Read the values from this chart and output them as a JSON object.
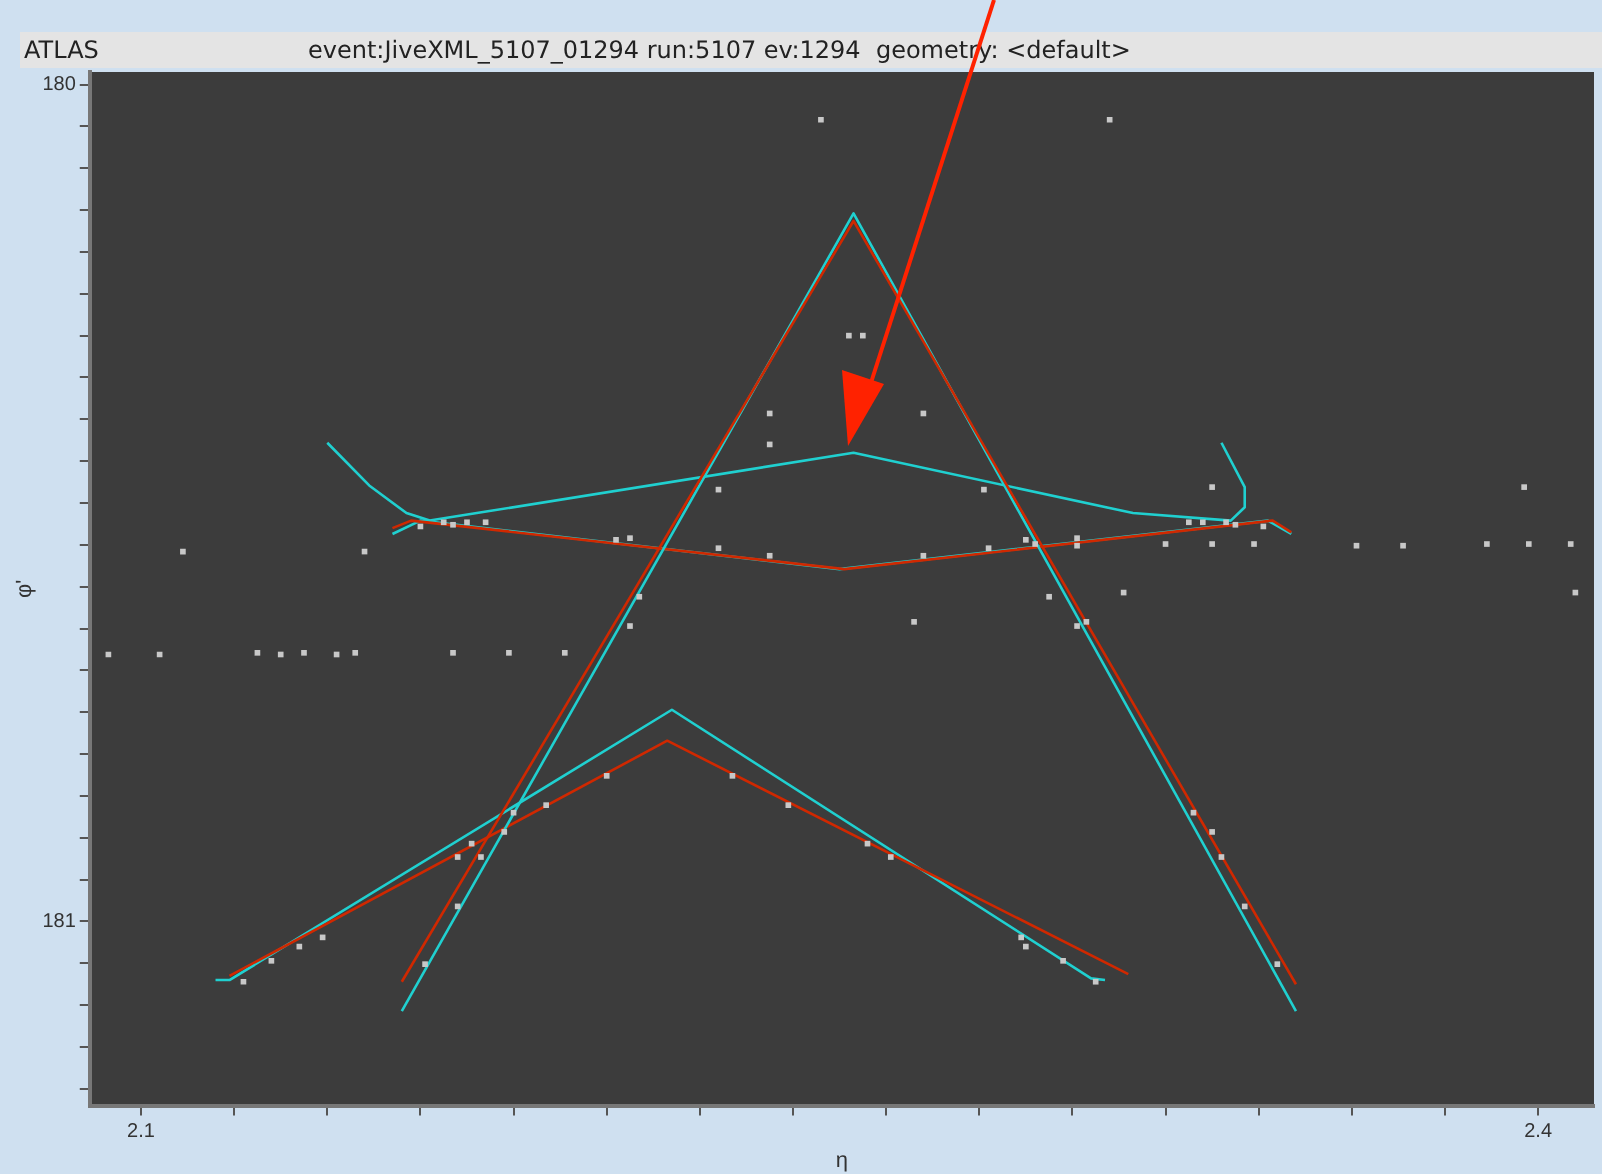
{
  "chart_data": {
    "type": "scatter",
    "title": "ATLAS",
    "subtitle": "event:JiveXML_5107_01294 run:5107 ev:1294  geometry: <default>",
    "xlabel": "η",
    "ylabel": "φ'",
    "xlim": [
      2.089,
      2.412
    ],
    "ylim": [
      181.22,
      179.985
    ],
    "xticks": [
      2.1,
      {
        "value": 2.12,
        "label": null
      },
      {
        "value": 2.14,
        "label": null
      },
      {
        "value": 2.16,
        "label": null
      },
      {
        "value": 2.18,
        "label": null
      },
      {
        "value": 2.2,
        "label": null
      },
      {
        "value": 2.22,
        "label": null
      },
      {
        "value": 2.24,
        "label": null
      },
      {
        "value": 2.26,
        "label": null
      },
      {
        "value": 2.28,
        "label": null
      },
      {
        "value": 2.3,
        "label": null
      },
      {
        "value": 2.32,
        "label": null
      },
      {
        "value": 2.34,
        "label": null
      },
      {
        "value": 2.36,
        "label": null
      },
      {
        "value": 2.38,
        "label": null
      },
      2.4
    ],
    "yticks": [
      180,
      {
        "value": 180.05,
        "label": null
      },
      {
        "value": 180.1,
        "label": null
      },
      {
        "value": 180.15,
        "label": null
      },
      {
        "value": 180.2,
        "label": null
      },
      {
        "value": 180.25,
        "label": null
      },
      {
        "value": 180.3,
        "label": null
      },
      {
        "value": 180.35,
        "label": null
      },
      {
        "value": 180.4,
        "label": null
      },
      {
        "value": 180.45,
        "label": null
      },
      {
        "value": 180.5,
        "label": null
      },
      {
        "value": 180.55,
        "label": null
      },
      {
        "value": 180.6,
        "label": null
      },
      {
        "value": 180.65,
        "label": null
      },
      {
        "value": 180.7,
        "label": null
      },
      {
        "value": 180.75,
        "label": null
      },
      {
        "value": 180.8,
        "label": null
      },
      {
        "value": 180.85,
        "label": null
      },
      {
        "value": 180.9,
        "label": null
      },
      {
        "value": 180.95,
        "label": null
      },
      181,
      {
        "value": 181.05,
        "label": null
      },
      {
        "value": 181.1,
        "label": null
      },
      {
        "value": 181.15,
        "label": null
      },
      {
        "value": 181.2,
        "label": null
      }
    ],
    "grid": false,
    "legend": false,
    "marker": "square",
    "series": [
      {
        "type": "scatter",
        "color": "#c8c8c8",
        "x": [
          2.093,
          2.104,
          2.109,
          2.125,
          2.13,
          2.135,
          2.142,
          2.146,
          2.148,
          2.16,
          2.165,
          2.167,
          2.17,
          2.174,
          2.167,
          2.179,
          2.191,
          2.202,
          2.205,
          2.207,
          2.205,
          2.224,
          2.224,
          2.235,
          2.235,
          2.235,
          2.252,
          2.255,
          2.268,
          2.281,
          2.268,
          2.266,
          2.282,
          2.29,
          2.292,
          2.301,
          2.301,
          2.295,
          2.311,
          2.301,
          2.303,
          2.32,
          2.33,
          2.33,
          2.325,
          2.328,
          2.333,
          2.335,
          2.341,
          2.339,
          2.361,
          2.371,
          2.389,
          2.398,
          2.407,
          2.397,
          2.408,
          2.246,
          2.308,
          2.122,
          2.128,
          2.134,
          2.139,
          2.161,
          2.168,
          2.168,
          2.171,
          2.173,
          2.178,
          2.18,
          2.187,
          2.2,
          2.227,
          2.239,
          2.256,
          2.261,
          2.289,
          2.29,
          2.298,
          2.305,
          2.326,
          2.33,
          2.332,
          2.337,
          2.344
        ],
        "values": [
          180.681,
          180.681,
          180.558,
          180.679,
          180.681,
          180.679,
          180.681,
          180.679,
          180.558,
          180.528,
          180.523,
          180.526,
          180.523,
          180.523,
          180.679,
          180.679,
          180.679,
          180.544,
          180.542,
          180.612,
          180.647,
          180.484,
          180.554,
          180.393,
          180.43,
          180.563,
          180.3,
          180.3,
          180.393,
          180.484,
          180.563,
          180.642,
          180.554,
          180.544,
          180.549,
          180.542,
          180.551,
          180.612,
          180.607,
          180.647,
          180.642,
          180.549,
          180.481,
          180.549,
          180.523,
          180.523,
          180.523,
          180.526,
          180.528,
          180.549,
          180.551,
          180.551,
          180.549,
          180.549,
          180.549,
          180.481,
          180.607,
          180.042,
          180.042,
          181.072,
          181.047,
          181.03,
          181.019,
          181.051,
          180.982,
          180.923,
          180.907,
          180.923,
          180.893,
          180.87,
          180.861,
          180.826,
          180.826,
          180.861,
          180.907,
          180.923,
          181.019,
          181.03,
          181.047,
          181.072,
          180.87,
          180.893,
          180.923,
          180.982,
          181.051
        ]
      },
      {
        "type": "line",
        "marker": "none",
        "color": "#d02800",
        "x": [
          2.156,
          2.253,
          2.348
        ],
        "values": [
          181.072,
          180.163,
          181.075
        ]
      },
      {
        "type": "line",
        "marker": "none",
        "color": "#20d0d0",
        "x": [
          2.156,
          2.253,
          2.348
        ],
        "values": [
          181.107,
          180.154,
          181.107
        ]
      },
      {
        "type": "line",
        "marker": "none",
        "color": "#d02800",
        "x": [
          2.119,
          2.213,
          2.312
        ],
        "values": [
          181.065,
          180.784,
          181.063
        ]
      },
      {
        "type": "line",
        "marker": "none",
        "color": "#20d0d0",
        "x": [
          2.116,
          2.119,
          2.214,
          2.304,
          2.307
        ],
        "values": [
          181.07,
          181.07,
          180.747,
          181.068,
          181.07
        ]
      },
      {
        "type": "line",
        "marker": "none",
        "color": "#d02800",
        "x": [
          2.154,
          2.158,
          2.251,
          2.343,
          2.347
        ],
        "values": [
          180.53,
          180.521,
          180.579,
          180.521,
          180.535
        ]
      },
      {
        "type": "line",
        "marker": "none",
        "color": "#20d0d0",
        "x": [
          2.154,
          2.16,
          2.25,
          2.342,
          2.347
        ],
        "values": [
          180.537,
          180.521,
          180.579,
          180.521,
          180.537
        ]
      },
      {
        "type": "line",
        "marker": "none",
        "color": "#20d0d0",
        "x": [
          2.14,
          2.149,
          2.157,
          2.162,
          2.253,
          2.313,
          2.334,
          2.337,
          2.337,
          2.332
        ],
        "values": [
          180.428,
          180.479,
          180.512,
          180.521,
          180.44,
          180.512,
          180.521,
          180.505,
          180.481,
          180.428
        ]
      }
    ]
  }
}
